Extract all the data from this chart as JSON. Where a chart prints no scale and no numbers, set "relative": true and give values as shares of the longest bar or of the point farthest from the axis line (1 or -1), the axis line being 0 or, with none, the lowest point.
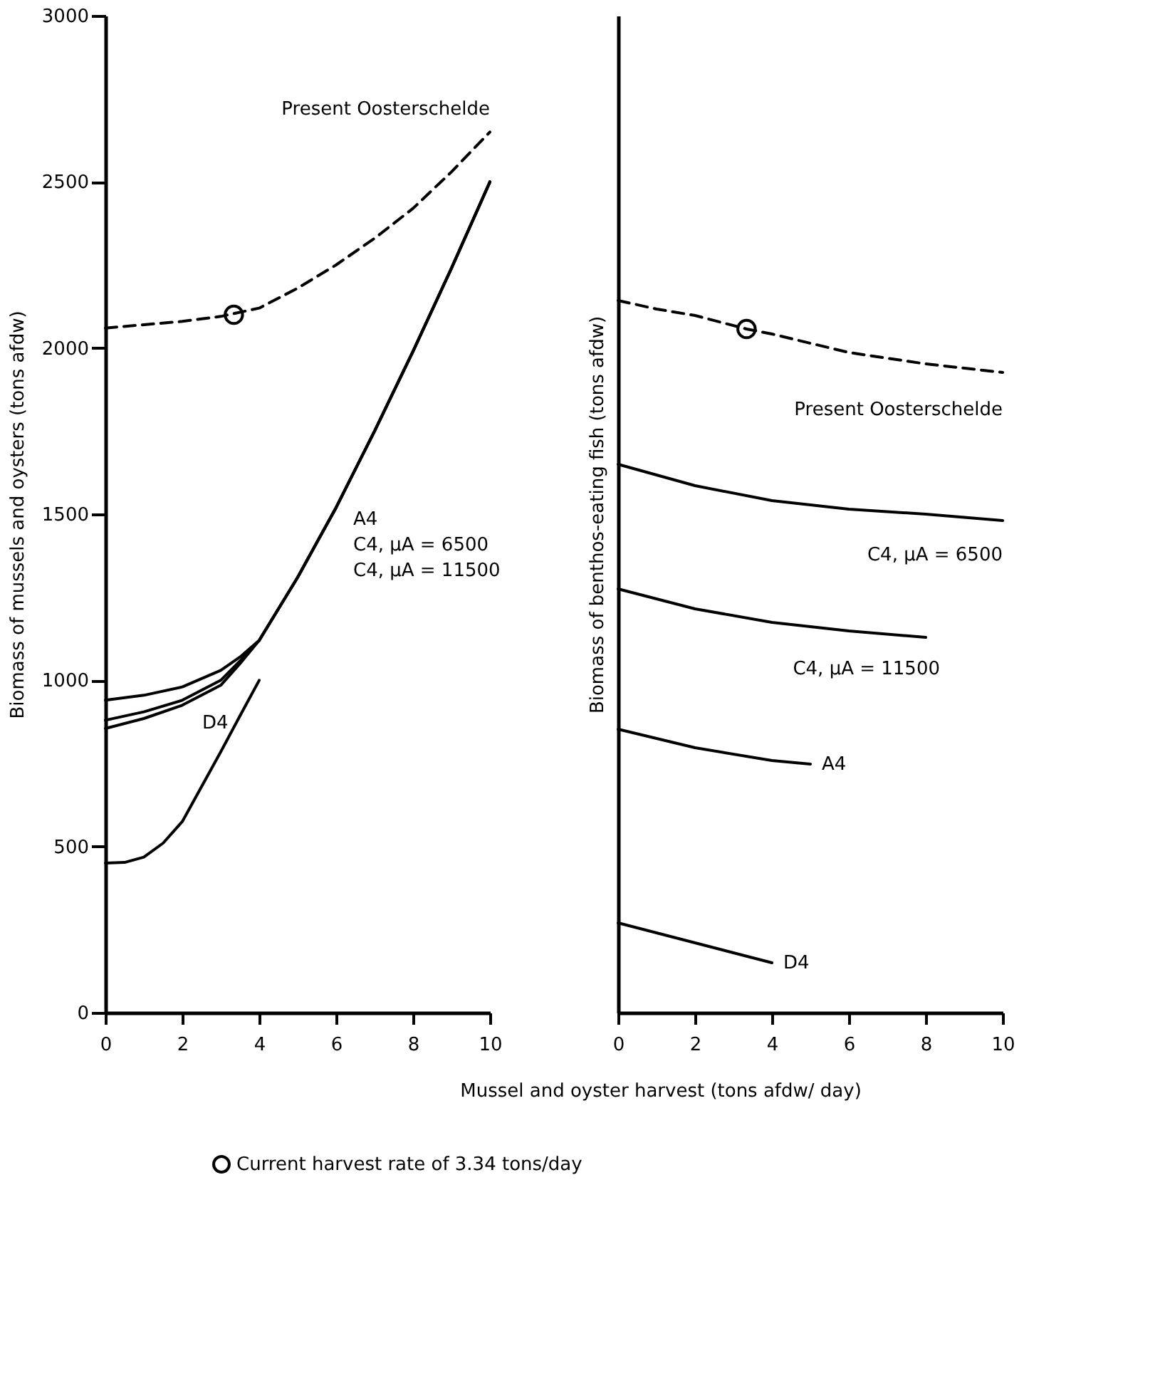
{
  "chart_data": [
    {
      "type": "line",
      "xlabel": "Mussel and oyster harvest (tons afdw/ day)",
      "ylabel": "Biomass of mussels and oysters (tons afdw)",
      "xlim": [
        0,
        10
      ],
      "xticks": [
        0,
        2,
        4,
        6,
        8,
        10
      ],
      "ylim": [
        0,
        3000
      ],
      "yticks": [
        0,
        500,
        1000,
        1500,
        2000,
        2500,
        3000
      ],
      "grid": false,
      "legend": "bottom",
      "series": [
        {
          "name": "Present Oosterschelde",
          "color": "#000000",
          "line_style": "dashed",
          "x": [
            0,
            1,
            2,
            3,
            4,
            5,
            6,
            7,
            8,
            9,
            10
          ],
          "values": [
            2060,
            2070,
            2080,
            2095,
            2120,
            2180,
            2250,
            2330,
            2420,
            2530,
            2650
          ]
        },
        {
          "name": "A4",
          "color": "#000000",
          "x": [
            0,
            1,
            2,
            3,
            3.5,
            4,
            5,
            6,
            7,
            8,
            9,
            10
          ],
          "values": [
            940,
            955,
            980,
            1030,
            1070,
            1120,
            1310,
            1520,
            1750,
            1990,
            2240,
            2500
          ]
        },
        {
          "name": "C4, μA = 6500",
          "color": "#000000",
          "x": [
            0,
            1,
            2,
            3,
            3.5,
            4,
            5,
            6,
            7,
            8,
            9,
            10
          ],
          "values": [
            880,
            905,
            940,
            1000,
            1058,
            1120,
            1310,
            1520,
            1750,
            1990,
            2240,
            2500
          ]
        },
        {
          "name": "C4, μA = 11500",
          "color": "#000000",
          "x": [
            0,
            1,
            2,
            3,
            3.5,
            4,
            5,
            6,
            7,
            8,
            9,
            10
          ],
          "values": [
            855,
            885,
            925,
            985,
            1050,
            1120,
            1310,
            1520,
            1750,
            1990,
            2240,
            2500
          ]
        },
        {
          "name": "D4",
          "color": "#000000",
          "x": [
            0,
            0.5,
            1,
            1.5,
            2,
            2.5,
            3,
            3.5,
            4
          ],
          "values": [
            450,
            452,
            468,
            510,
            575,
            680,
            785,
            893,
            1000
          ]
        },
        {
          "name": "Current harvest rate of 3.34 tons/day",
          "type": "scatter",
          "marker": "circle",
          "color": "#000000",
          "x": [
            3.34
          ],
          "values": [
            2100
          ]
        }
      ]
    },
    {
      "type": "line",
      "ylabel": "Biomass of benthos-eating fish (tons afdw)",
      "relative": true,
      "xlim": [
        0,
        10
      ],
      "xticks": [
        0,
        2,
        4,
        6,
        8,
        10
      ],
      "tick_labels": "x",
      "grid": false,
      "series": [
        {
          "name": "Present Oosterschelde",
          "color": "#000000",
          "line_style": "dashed",
          "x": [
            0,
            1,
            2,
            3.34,
            4,
            6,
            8,
            10
          ],
          "values": [
            1,
            0.988,
            0.979,
            0.96,
            0.953,
            0.927,
            0.911,
            0.899
          ]
        },
        {
          "name": "C4, μA = 6500",
          "color": "#000000",
          "x": [
            0,
            2,
            4,
            6,
            8,
            10
          ],
          "values": [
            0.77,
            0.74,
            0.719,
            0.707,
            0.7,
            0.691
          ]
        },
        {
          "name": "C4, μA = 11500",
          "color": "#000000",
          "x": [
            0,
            2,
            4,
            6,
            8
          ],
          "values": [
            0.595,
            0.567,
            0.548,
            0.536,
            0.527
          ]
        },
        {
          "name": "A4",
          "color": "#000000",
          "x": [
            0,
            2,
            4,
            5
          ],
          "values": [
            0.398,
            0.372,
            0.354,
            0.349
          ]
        },
        {
          "name": "D4",
          "color": "#000000",
          "x": [
            0,
            1,
            2,
            3,
            4
          ],
          "values": [
            0.126,
            0.112,
            0.098,
            0.084,
            0.07
          ]
        },
        {
          "type": "scatter",
          "marker": "circle",
          "color": "#000000",
          "x": [
            3.34
          ],
          "values": [
            0.96
          ]
        }
      ]
    }
  ]
}
